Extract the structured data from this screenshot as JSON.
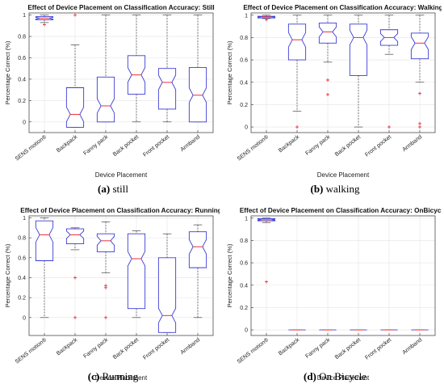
{
  "colors": {
    "box": "#3b3bd6",
    "median": "#e8323a",
    "outlier": "#e8323a",
    "whisker": "#444444",
    "grid": "#e4e4e4"
  },
  "chart_data": [
    {
      "type": "boxplot",
      "title": "Effect of Device Placement on Classification Accuracy: Still",
      "xlabel": "Device Placement",
      "ylabel": "Percentage Correct (%)",
      "ylim": [
        -0.1,
        1.02
      ],
      "yticks": [
        "0",
        "0.2",
        "0.4",
        "0.6",
        "0.8",
        "1"
      ],
      "categories": [
        "SENS motion®",
        "Backpack",
        "Fanny pack",
        "Back pocket",
        "Front pocket",
        "Armband"
      ],
      "boxes": [
        {
          "whislo": 0.93,
          "q1": 0.955,
          "med": 0.97,
          "q3": 0.985,
          "whishi": 1.0,
          "fliers": [
            0.91
          ]
        },
        {
          "whislo": -0.05,
          "q1": -0.05,
          "med": 0.07,
          "q3": 0.32,
          "whishi": 0.72,
          "fliers": [
            1.0
          ]
        },
        {
          "whislo": 0.0,
          "q1": 0.0,
          "med": 0.15,
          "q3": 0.42,
          "whishi": 1.0,
          "fliers": []
        },
        {
          "whislo": 0.0,
          "q1": 0.26,
          "med": 0.44,
          "q3": 0.62,
          "whishi": 1.0,
          "fliers": []
        },
        {
          "whislo": 0.0,
          "q1": 0.12,
          "med": 0.37,
          "q3": 0.5,
          "whishi": 1.0,
          "fliers": []
        },
        {
          "whislo": 0.0,
          "q1": 0.0,
          "med": 0.25,
          "q3": 0.51,
          "whishi": 1.0,
          "fliers": []
        }
      ],
      "caption_letter": "(a)",
      "caption_text": " still"
    },
    {
      "type": "boxplot",
      "title": "Effect of Device Placement on Classification Accuracy: Walking",
      "xlabel": "Device Placement",
      "ylabel": "Percentage Correct (%)",
      "ylim": [
        -0.05,
        1.02
      ],
      "yticks": [
        "0",
        "0.2",
        "0.4",
        "0.6",
        "0.8",
        "1"
      ],
      "categories": [
        "SENS motion®",
        "Backpack",
        "Fanny pack",
        "Back pocket",
        "Front pocket",
        "Armband"
      ],
      "boxes": [
        {
          "whislo": 0.97,
          "q1": 0.975,
          "med": 0.985,
          "q3": 0.99,
          "whishi": 1.0,
          "fliers": [
            0.96
          ]
        },
        {
          "whislo": 0.14,
          "q1": 0.6,
          "med": 0.78,
          "q3": 0.92,
          "whishi": 1.0,
          "fliers": [
            0.0
          ]
        },
        {
          "whislo": 0.58,
          "q1": 0.75,
          "med": 0.85,
          "q3": 0.93,
          "whishi": 1.0,
          "fliers": [
            0.42,
            0.29
          ]
        },
        {
          "whislo": 0.0,
          "q1": 0.46,
          "med": 0.8,
          "q3": 0.92,
          "whishi": 1.0,
          "fliers": []
        },
        {
          "whislo": 0.65,
          "q1": 0.73,
          "med": 0.8,
          "q3": 0.87,
          "whishi": 1.0,
          "fliers": [
            0.0
          ]
        },
        {
          "whislo": 0.4,
          "q1": 0.61,
          "med": 0.75,
          "q3": 0.84,
          "whishi": 1.0,
          "fliers": [
            0.3,
            0.03,
            0.0
          ]
        }
      ],
      "caption_letter": "(b)",
      "caption_text": " walking"
    },
    {
      "type": "boxplot",
      "title": "Effect of Device Placement on Classification Accuracy: Running",
      "xlabel": "Device Placement",
      "ylabel": "Percentage Correct (%)",
      "ylim": [
        -0.18,
        1.02
      ],
      "yticks": [
        "0",
        "0.2",
        "0.4",
        "0.6",
        "0.8",
        "1"
      ],
      "categories": [
        "SENS motion®",
        "Backpack",
        "Fanny pack",
        "Back pocket",
        "Front pocket",
        "Armband"
      ],
      "boxes": [
        {
          "whislo": 0.0,
          "q1": 0.57,
          "med": 0.83,
          "q3": 0.97,
          "whishi": 1.0,
          "fliers": []
        },
        {
          "whislo": 0.68,
          "q1": 0.74,
          "med": 0.83,
          "q3": 0.89,
          "whishi": 0.9,
          "fliers": [
            0.4,
            0.0
          ]
        },
        {
          "whislo": 0.45,
          "q1": 0.66,
          "med": 0.77,
          "q3": 0.84,
          "whishi": 0.96,
          "fliers": [
            0.32,
            0.3,
            0.0
          ]
        },
        {
          "whislo": 0.0,
          "q1": 0.09,
          "med": 0.59,
          "q3": 0.84,
          "whishi": 0.87,
          "fliers": []
        },
        {
          "whislo": -0.15,
          "q1": -0.15,
          "med": 0.02,
          "q3": 0.6,
          "whishi": 0.84,
          "fliers": []
        },
        {
          "whislo": 0.0,
          "q1": 0.5,
          "med": 0.71,
          "q3": 0.86,
          "whishi": 0.93,
          "fliers": []
        }
      ],
      "caption_letter": "(c)",
      "caption_text": " Running"
    },
    {
      "type": "boxplot",
      "title": "Effect of Device Placement on Classification Accuracy: OnBicycle",
      "xlabel": "Device Placement",
      "ylabel": "Percentage Correct (%)",
      "ylim": [
        -0.05,
        1.02
      ],
      "yticks": [
        "0",
        "0.2",
        "0.4",
        "0.6",
        "0.8",
        "1"
      ],
      "categories": [
        "SENS motion®",
        "Backpack",
        "Fanny pack",
        "Back pocket",
        "Front pocket",
        "Armband"
      ],
      "boxes": [
        {
          "whislo": 0.96,
          "q1": 0.975,
          "med": 0.985,
          "q3": 0.995,
          "whishi": 1.0,
          "fliers": [
            0.43
          ]
        },
        {
          "whislo": 0.0,
          "q1": 0.0,
          "med": 0.0,
          "q3": 0.0,
          "whishi": 0.0,
          "fliers": []
        },
        {
          "whislo": 0.0,
          "q1": 0.0,
          "med": 0.0,
          "q3": 0.0,
          "whishi": 0.0,
          "fliers": []
        },
        {
          "whislo": 0.0,
          "q1": 0.0,
          "med": 0.0,
          "q3": 0.0,
          "whishi": 0.0,
          "fliers": []
        },
        {
          "whislo": 0.0,
          "q1": 0.0,
          "med": 0.0,
          "q3": 0.0,
          "whishi": 0.0,
          "fliers": []
        },
        {
          "whislo": 0.0,
          "q1": 0.0,
          "med": 0.0,
          "q3": 0.0,
          "whishi": 0.0,
          "fliers": []
        }
      ],
      "caption_letter": "(d)",
      "caption_text": " On Bicycle"
    }
  ]
}
